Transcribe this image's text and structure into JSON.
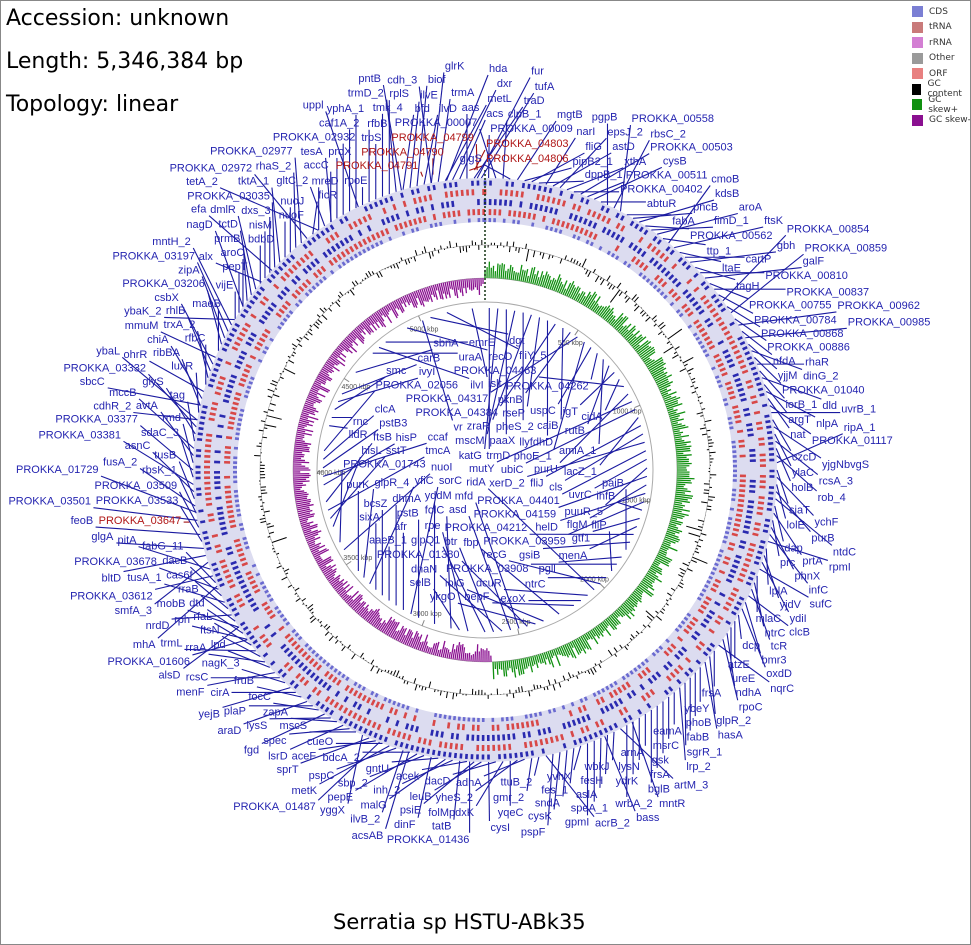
{
  "header": {
    "accession": "Accession: unknown",
    "length": "Length: 5,346,384 bp",
    "topology": "Topology: linear"
  },
  "title": "Serratia sp HSTU-ABk35",
  "legend": [
    {
      "label": "CDS",
      "color": "#7b7fd4"
    },
    {
      "label": "tRNA",
      "color": "#c97a7a"
    },
    {
      "label": "rRNA",
      "color": "#d37fd3"
    },
    {
      "label": "Other",
      "color": "#9a9a9a"
    },
    {
      "label": "ORF",
      "color": "#e88080"
    },
    {
      "label": "GC content",
      "color": "#000000"
    },
    {
      "label": "GC skew+",
      "color": "#109010"
    },
    {
      "label": "GC skew-",
      "color": "#8a1090"
    }
  ],
  "genome_length_bp": 5346384,
  "ticks": [
    "500 kbp",
    "1000 kbp",
    "1500 kbp",
    "2000 kbp",
    "2500 kbp",
    "3000 kbp",
    "3500 kbp",
    "4000 kbp",
    "4500 kbp",
    "5000 kbp"
  ],
  "highlighted_labels": [
    "PROKKA_04791",
    "PROKKA_04790",
    "PROKKA_04806",
    "PROKKA_04803",
    "PROKKA_04799",
    "PROKKA_03647"
  ],
  "outer_labels": [
    "PROKKA_00009",
    "PROKKA_00007",
    "clpB_1",
    "glgS",
    "mgtB",
    "pipB2_1",
    "fliG",
    "dppB_1",
    "narI",
    "astD",
    "epsJ_2",
    "xthA",
    "PROKKA_00402",
    "PROKKA_00503",
    "PROKKA_00511",
    "cysB",
    "abtuR",
    "pgpB",
    "rbsC_2",
    "PROKKA_00558",
    "fabA",
    "pncB",
    "kdsB",
    "PROKKA_00562",
    "fimD_1",
    "aroA",
    "ttp_1",
    "cmoB",
    "ftsK",
    "ltaE",
    "cartP",
    "gbh",
    "tagH",
    "PROKKA_00810",
    "galF",
    "PROKKA_00755",
    "PROKKA_00837",
    "PROKKA_00784",
    "PROKKA_00854",
    "PROKKA_00868",
    "PROKKA_00859",
    "PROKKA_00886",
    "PROKKA_00962",
    "nfdA",
    "PROKKA_00985",
    "yjjM",
    "dinG_2",
    "PROKKA_01040",
    "rhaR",
    "iorB_1",
    "dld",
    "argT",
    "nlpA",
    "nat",
    "PROKKA_01117",
    "uvrB_1",
    "czcD",
    "yjgNbvgS",
    "ylaC",
    "rcsA_3",
    "holB",
    "rob_4",
    "ripA_1",
    "siaT",
    "ychF",
    "lolE",
    "purB",
    "ntdC",
    "dap",
    "prtA",
    "prc",
    "phnX",
    "infC",
    "rpmI",
    "lplA",
    "yjdV",
    "ydiI",
    "sufC",
    "mlaC",
    "ntrC",
    "tcR",
    "clcB",
    "bmr3",
    "oxdD",
    "dcp",
    "atzE",
    "ureE",
    "ndhA",
    "rpoC",
    "nqrC",
    "frsA",
    "glpR_2",
    "hasA",
    "ybeY",
    "phoB",
    "fabB",
    "sgrR_1",
    "lrp_2",
    "eamA",
    "msrC",
    "gsk",
    "frsA",
    "bglB",
    "arnA",
    "lysN",
    "ydrK",
    "wrbA_2",
    "artM_3",
    "wbkJ",
    "fesH",
    "aslA",
    "speA_1",
    "gpmI",
    "yvhX",
    "fes_1",
    "sndA",
    "cysK",
    "pspF",
    "acrB_2",
    "ttuB_2",
    "gmr_2",
    "adhA",
    "yheS_2",
    "yqeC",
    "folMpdxK",
    "dacD",
    "cysI",
    "leuB",
    "psiE",
    "acek",
    "tatB",
    "inh_2",
    "malG",
    "gntU",
    "dinF",
    "sbp_2",
    "pepE",
    "bdcA_2",
    "ilvB_2",
    "pspC",
    "metK",
    "cueO",
    "aceF",
    "sprT",
    "yggX",
    "mscS",
    "spec",
    "lsrD",
    "zapA",
    "lysS",
    "fgd",
    "focC",
    "plaP",
    "araD",
    "fruB",
    "cirA",
    "yejB",
    "nagK_3",
    "rcsC",
    "menF",
    "lpd",
    "rraA",
    "ftsN",
    "trmL",
    "rfaL",
    "rph",
    "dtd",
    "mobB",
    "rraB",
    "nrdD",
    "cas6f",
    "tusA_1",
    "dacB",
    "PROKKA_03678",
    "fabG_11",
    "PROKKA_03612",
    "pitA",
    "smfA_3",
    "bltD",
    "glgA",
    "PROKKA_03533",
    "feoB",
    "PROKKA_03509",
    "PROKKA_03501",
    "rbsK_1",
    "fusA_2",
    "tusB",
    "asnC",
    "PROKKA_03381",
    "sdaC_3",
    "PROKKA_03377",
    "rmd",
    "avtA",
    "mccB",
    "tag",
    "glyS",
    "PROKKA_03332",
    "cdhR_2",
    "luxR",
    "ribBA",
    "chiA",
    "ohrR",
    "rfbC",
    "trxA_2",
    "rhlB",
    "csbX",
    "mmuM",
    "maeB",
    "PROKKA_03206",
    "zipA",
    "PROKKA_03197",
    "mntH_2",
    "vijE",
    "pepT",
    "aroC",
    "prmB",
    "tctD",
    "dmlR",
    "bdbD",
    "nisM",
    "dxs_3",
    "PROKKA_03035",
    "tktA_1",
    "nuoF",
    "nuoJ",
    "rhaS_2",
    "PROKKA_02977",
    "PROKKA_02972",
    "ficR",
    "mreD",
    "gltC_2",
    "accC",
    "proX",
    "PROKKA_02932",
    "caf1A_2",
    "yphA_1",
    "rpoE",
    "rfbB",
    "trpS",
    "tmk_4",
    "rplS",
    "trmD_2",
    "bfd",
    "ilvE",
    "biof",
    "ilvD",
    "cdh_3",
    "trmA",
    "metL",
    "dxr",
    "acs",
    "aas",
    "traD",
    "tufA"
  ],
  "inner_labels": [
    "trmD",
    "katG",
    "paaX",
    "mscM",
    "pheS_2",
    "zraR",
    "rseP",
    "llyfdhD",
    "PROKKA_04384",
    "caiB",
    "pknB",
    "PROKKA_04317",
    "phoE_1",
    "uspC",
    "PROKKA_04262",
    "amiA_1",
    "rutB",
    "ligT",
    "cidA",
    "PROKKA_04463",
    "purU",
    "mutY",
    "ubiC",
    "lacZ_1",
    "fliJ",
    "cls",
    "xerD_2",
    "PROKKA_04401",
    "uvrC",
    "puuR_5",
    "PROKKA_04159",
    "flgM",
    "helD",
    "PROKKA_03959",
    "ihfB",
    "gtf1",
    "menA",
    "PROKKA_04212",
    "gsiB",
    "paiB",
    "pgll",
    "PROKKA_03908",
    "fliP",
    "ntrC",
    "recG",
    "ridA",
    "dcuR",
    "exoX",
    "bepF",
    "mntR",
    "fbp",
    "bass",
    "iolG",
    "ykgO",
    "PROKKA_01380",
    "mfd",
    "asd",
    "dnaN",
    "btr",
    "glpQ1",
    "PROKKA_01436",
    "rpe",
    "selB",
    "folC",
    "acsAB",
    "yddM",
    "PROKKA_01487",
    "pstB",
    "sorC",
    "afr",
    "dhmA",
    "aaeB_1",
    "bcsZ",
    "sixA",
    "yfiC",
    "glpR_4",
    "purK",
    "PROKKA_01606",
    "alsD",
    "nuoI",
    "PROKKA_01743",
    "mhA",
    "hisL",
    "sstT",
    "tmcA",
    "ftsB",
    "PROKKA_01729",
    "hisP",
    "ccaf",
    "pstB3",
    "clcA",
    "PROKKA_02056",
    "ybaL",
    "sbcC",
    "lldR",
    "rnc",
    "smc",
    "ivyI",
    "carB",
    "ybaK_2",
    "nagD",
    "sbnA",
    "alx",
    "efa",
    "uraA",
    "ilvI",
    "emrE",
    "tetA_2",
    "tesA",
    "recO",
    "uppl",
    "vr",
    "dgt",
    "pntB",
    "fliY_5",
    "glrK",
    "hda",
    "islt",
    "fur"
  ]
}
